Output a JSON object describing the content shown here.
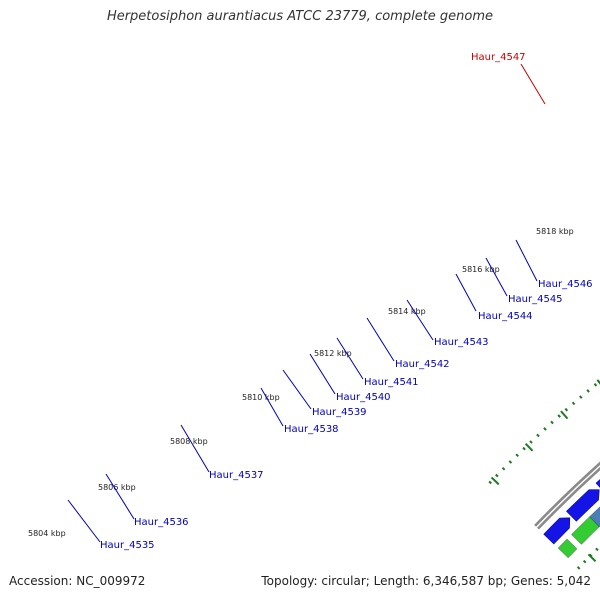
{
  "title": "Herpetosiphon aurantiacus ATCC 23779, complete genome",
  "footer": {
    "accession": "Accession: NC_009972",
    "summary": "Topology: circular; Length: 6,346,587 bp; Genes: 5,042"
  },
  "colors": {
    "gene_blue": "#1414e6",
    "label_blue": "#0000c0",
    "label_red": "#cc0000",
    "backbone": "#8a8a8a",
    "tick_green": "#1e7a1e",
    "cog_green": "#33cc33",
    "cog_red": "#e60000",
    "cog_steelblue": "#4a7fb5",
    "cog_cyan": "#2fcfcf",
    "cog_pink": "#ff1a8c",
    "cog_darkgray": "#555555",
    "cog_lightgray": "#b8b8b8",
    "cog_slate": "#474787",
    "cog_yellowgreen": "#b6f23a"
  },
  "scale_labels": [
    "5804 kbp",
    "5806 kbp",
    "5808 kbp",
    "5810 kbp",
    "5812 kbp",
    "5814 kbp",
    "5816 kbp",
    "5818 kbp"
  ],
  "gene_labels": [
    {
      "text": "Haur_4547",
      "color": "red"
    },
    {
      "text": "Haur_4546",
      "color": "blue"
    },
    {
      "text": "Haur_4545",
      "color": "blue"
    },
    {
      "text": "Haur_4544",
      "color": "blue"
    },
    {
      "text": "Haur_4543",
      "color": "blue"
    },
    {
      "text": "Haur_4542",
      "color": "blue"
    },
    {
      "text": "Haur_4541",
      "color": "blue"
    },
    {
      "text": "Haur_4540",
      "color": "blue"
    },
    {
      "text": "Haur_4539",
      "color": "blue"
    },
    {
      "text": "Haur_4538",
      "color": "blue"
    },
    {
      "text": "Haur_4537",
      "color": "blue"
    },
    {
      "text": "Haur_4536",
      "color": "blue"
    },
    {
      "text": "Haur_4535",
      "color": "blue"
    }
  ]
}
